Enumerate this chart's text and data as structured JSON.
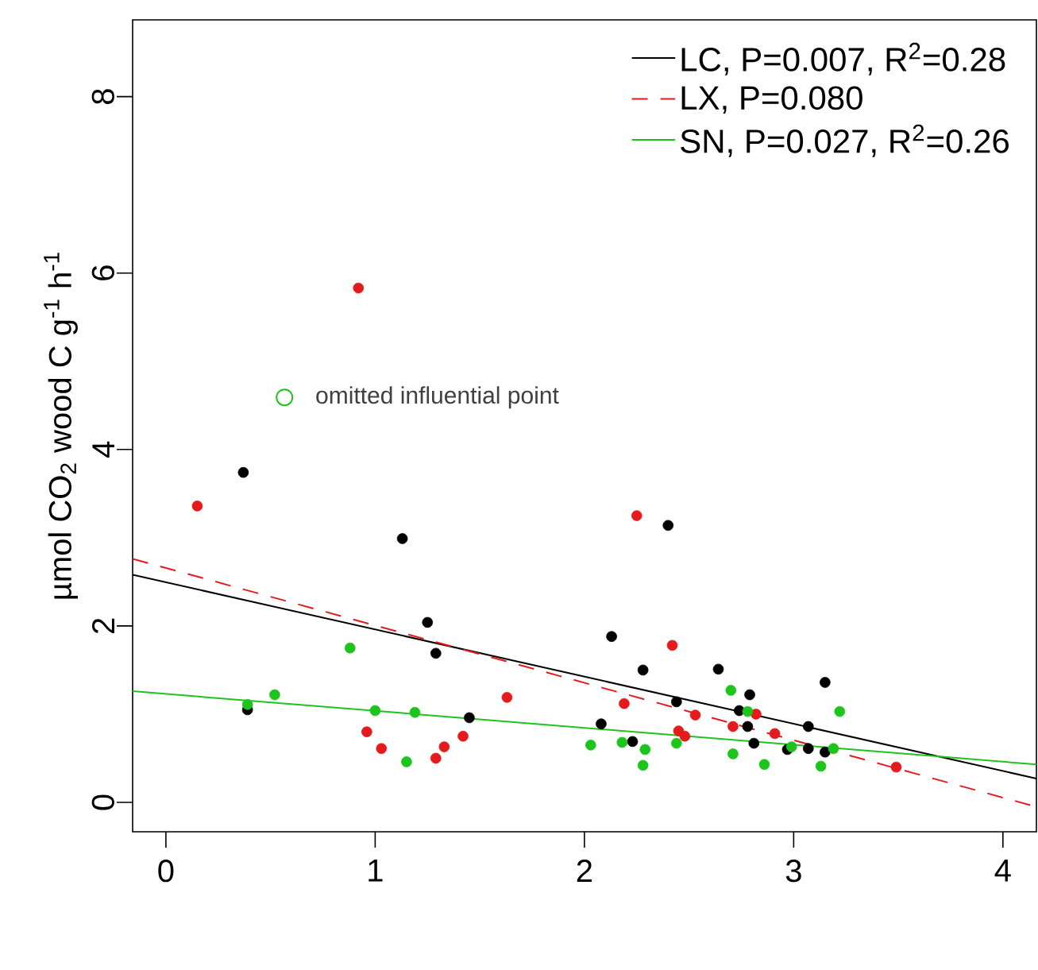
{
  "chart_data": {
    "type": "scatter",
    "ylabel": "µmol CO$_{2}$ wood C g$^{-1}$ h$^{-1}$",
    "xlim": [
      -0.159,
      4.16
    ],
    "ylim": [
      -0.333,
      8.87
    ],
    "xticks": [
      0,
      1,
      2,
      3,
      4
    ],
    "yticks": [
      0,
      2,
      4,
      6,
      8
    ],
    "grid": false,
    "legend": "top right",
    "annotations": [
      "omitted influential point"
    ],
    "series": [
      {
        "marker": "circle",
        "color": "#000000",
        "x": [
          0.37,
          0.39,
          1.13,
          1.25,
          1.29,
          1.45,
          2.4,
          2.13,
          2.28,
          2.64,
          3.15,
          2.79,
          2.44,
          2.74,
          2.78,
          3.07,
          2.08,
          2.23,
          2.81,
          2.97,
          3.07,
          3.15
        ],
        "values": [
          3.74,
          1.05,
          2.99,
          2.04,
          1.69,
          0.96,
          3.14,
          1.88,
          1.5,
          1.51,
          1.36,
          1.22,
          1.14,
          1.04,
          0.86,
          0.86,
          0.89,
          0.69,
          0.67,
          0.6,
          0.61,
          0.57
        ]
      },
      {
        "marker": "circle",
        "color": "#e41a1c",
        "x": [
          0.15,
          0.92,
          1.63,
          0.96,
          1.03,
          1.29,
          1.33,
          1.42,
          2.25,
          2.42,
          2.19,
          2.53,
          2.82,
          2.45,
          2.71,
          2.91,
          2.48,
          3.49
        ],
        "values": [
          3.36,
          5.83,
          1.19,
          0.8,
          0.61,
          0.5,
          0.63,
          0.75,
          3.25,
          1.78,
          1.12,
          0.99,
          1.0,
          0.81,
          0.86,
          0.78,
          0.75,
          0.4
        ]
      },
      {
        "marker": "circle",
        "color": "#1cc41c",
        "x": [
          0.88,
          0.52,
          0.39,
          1.0,
          1.19,
          1.15,
          2.03,
          2.18,
          2.29,
          2.28,
          2.44,
          2.7,
          2.78,
          2.71,
          2.86,
          2.99,
          3.13,
          3.19,
          3.22
        ],
        "values": [
          1.75,
          1.22,
          1.11,
          1.04,
          1.02,
          0.46,
          0.65,
          0.68,
          0.6,
          0.42,
          0.67,
          1.27,
          1.03,
          0.55,
          0.43,
          0.63,
          0.41,
          0.61,
          1.03
        ]
      },
      {
        "type": "line",
        "name": "LC, P=0.007, R$^{2}$=0.28",
        "marker": "none",
        "line_style": "solid",
        "color": "#000000",
        "x": [
          -0.159,
          4.16
        ],
        "values": [
          2.58,
          0.27
        ]
      },
      {
        "type": "line",
        "name": "LX, P=0.080",
        "marker": "none",
        "line_style": "dashed",
        "color": "#e41a1c",
        "x": [
          -0.159,
          4.16
        ],
        "values": [
          2.76,
          -0.05
        ]
      },
      {
        "type": "line",
        "name": "SN, P=0.027, R$^{2}$=0.26",
        "marker": "none",
        "line_style": "solid",
        "color": "#1cc41c",
        "x": [
          -0.159,
          4.16
        ],
        "values": [
          1.26,
          0.43
        ]
      }
    ]
  }
}
